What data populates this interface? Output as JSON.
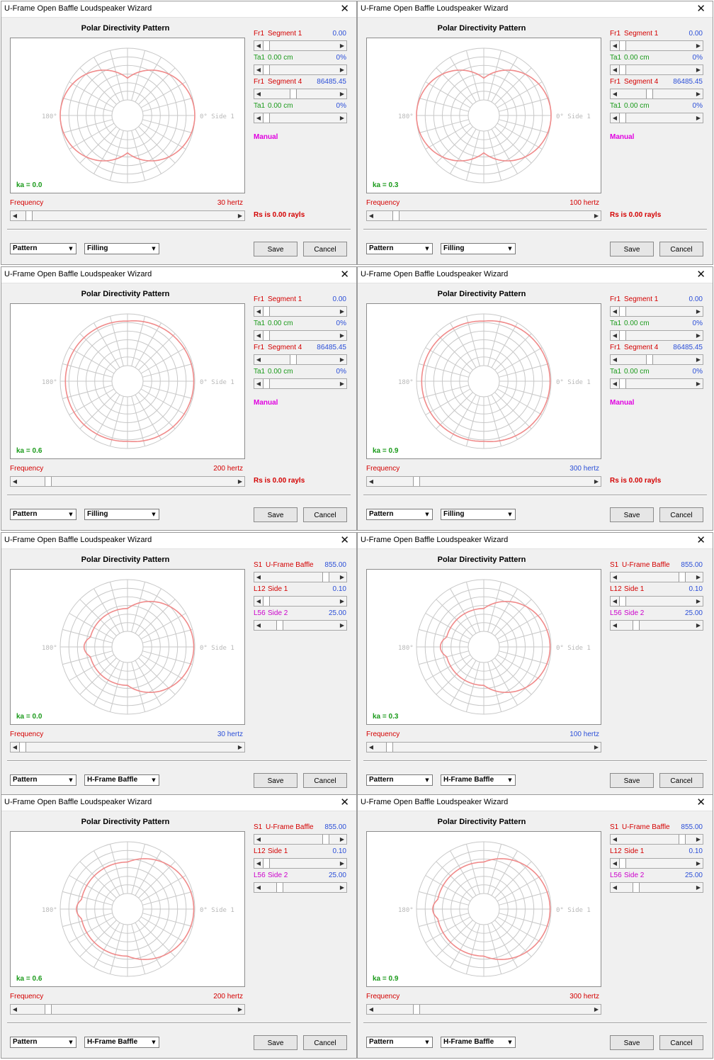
{
  "common": {
    "window_title": "U-Frame Open Baffle Loudspeaker Wizard",
    "close_glyph": "✕",
    "plot_title": "Polar Directivity Pattern",
    "angle_180": "180°",
    "angle_0": "0° Side 1",
    "frequency_label": "Frequency",
    "combo_pattern": "Pattern",
    "save_label": "Save",
    "cancel_label": "Cancel",
    "manual_label": "Manual",
    "rs_label": "Rs is 0.00 rayls",
    "slider_left_glyph": "◀",
    "slider_right_glyph": "▶",
    "combo_arrow_glyph": "▼"
  },
  "windows": [
    {
      "ka": "ka = 0.0",
      "freq": "30 hertz",
      "freq_color": "#d40000",
      "freq_thumb": 0.03,
      "combo2": "Filling",
      "mode": "filling",
      "sliders": [
        {
          "code": "Fr1",
          "name": "Segment 1",
          "value": "0.00",
          "code_color": "#d40000",
          "name_color": "#d40000",
          "value_color": "#2b4fd8",
          "thumb": 0.0
        },
        {
          "code": "Ta1",
          "name": "0.00 cm",
          "value": "0%",
          "code_color": "#1a9a1a",
          "name_color": "#1a9a1a",
          "value_color": "#2b4fd8",
          "thumb": 0.0
        },
        {
          "code": "Fr1",
          "name": "Segment 4",
          "value": "86485.45",
          "code_color": "#d40000",
          "name_color": "#d40000",
          "value_color": "#2b4fd8",
          "thumb": 0.4
        },
        {
          "code": "Ta1",
          "name": "0.00 cm",
          "value": "0%",
          "code_color": "#1a9a1a",
          "name_color": "#1a9a1a",
          "value_color": "#2b4fd8",
          "thumb": 0.0
        }
      ]
    },
    {
      "ka": "ka = 0.3",
      "freq": "100 hertz",
      "freq_color": "#d40000",
      "freq_thumb": 0.08,
      "combo2": "Filling",
      "mode": "filling",
      "sliders": [
        {
          "code": "Fr1",
          "name": "Segment 1",
          "value": "0.00",
          "code_color": "#d40000",
          "name_color": "#d40000",
          "value_color": "#2b4fd8",
          "thumb": 0.0
        },
        {
          "code": "Ta1",
          "name": "0.00 cm",
          "value": "0%",
          "code_color": "#1a9a1a",
          "name_color": "#1a9a1a",
          "value_color": "#2b4fd8",
          "thumb": 0.0
        },
        {
          "code": "Fr1",
          "name": "Segment 4",
          "value": "86485.45",
          "code_color": "#d40000",
          "name_color": "#d40000",
          "value_color": "#2b4fd8",
          "thumb": 0.4
        },
        {
          "code": "Ta1",
          "name": "0.00 cm",
          "value": "0%",
          "code_color": "#1a9a1a",
          "name_color": "#1a9a1a",
          "value_color": "#2b4fd8",
          "thumb": 0.0
        }
      ]
    },
    {
      "ka": "ka = 0.6",
      "freq": "200 hertz",
      "freq_color": "#d40000",
      "freq_thumb": 0.12,
      "combo2": "Filling",
      "mode": "filling",
      "sliders": [
        {
          "code": "Fr1",
          "name": "Segment 1",
          "value": "0.00",
          "code_color": "#d40000",
          "name_color": "#d40000",
          "value_color": "#2b4fd8",
          "thumb": 0.0
        },
        {
          "code": "Ta1",
          "name": "0.00 cm",
          "value": "0%",
          "code_color": "#1a9a1a",
          "name_color": "#1a9a1a",
          "value_color": "#2b4fd8",
          "thumb": 0.0
        },
        {
          "code": "Fr1",
          "name": "Segment 4",
          "value": "86485.45",
          "code_color": "#d40000",
          "name_color": "#d40000",
          "value_color": "#2b4fd8",
          "thumb": 0.4
        },
        {
          "code": "Ta1",
          "name": "0.00 cm",
          "value": "0%",
          "code_color": "#1a9a1a",
          "name_color": "#1a9a1a",
          "value_color": "#2b4fd8",
          "thumb": 0.0
        }
      ]
    },
    {
      "ka": "ka = 0.9",
      "freq": "300 hertz",
      "freq_color": "#2b4fd8",
      "freq_thumb": 0.18,
      "combo2": "Filling",
      "mode": "filling",
      "sliders": [
        {
          "code": "Fr1",
          "name": "Segment 1",
          "value": "0.00",
          "code_color": "#d40000",
          "name_color": "#d40000",
          "value_color": "#2b4fd8",
          "thumb": 0.0
        },
        {
          "code": "Ta1",
          "name": "0.00 cm",
          "value": "0%",
          "code_color": "#1a9a1a",
          "name_color": "#1a9a1a",
          "value_color": "#2b4fd8",
          "thumb": 0.0
        },
        {
          "code": "Fr1",
          "name": "Segment 4",
          "value": "86485.45",
          "code_color": "#d40000",
          "name_color": "#d40000",
          "value_color": "#2b4fd8",
          "thumb": 0.4
        },
        {
          "code": "Ta1",
          "name": "0.00 cm",
          "value": "0%",
          "code_color": "#1a9a1a",
          "name_color": "#1a9a1a",
          "value_color": "#2b4fd8",
          "thumb": 0.0
        }
      ]
    },
    {
      "ka": "ka = 0.0",
      "freq": "30 hertz",
      "freq_color": "#2b4fd8",
      "freq_thumb": 0.0,
      "combo2": "H-Frame Baffle",
      "mode": "hframe",
      "sliders": [
        {
          "code": "S1",
          "name": "U-Frame Baffle",
          "value": "855.00",
          "code_color": "#d40000",
          "name_color": "#d40000",
          "value_color": "#2b4fd8",
          "thumb": 0.88
        },
        {
          "code": "L12",
          "name": "Side 1",
          "value": "0.10",
          "code_color": "#d40000",
          "name_color": "#d40000",
          "value_color": "#2b4fd8",
          "thumb": 0.0
        },
        {
          "code": "L56",
          "name": "Side 2",
          "value": "25.00",
          "code_color": "#cc00cc",
          "name_color": "#cc00cc",
          "value_color": "#2b4fd8",
          "thumb": 0.2
        }
      ]
    },
    {
      "ka": "ka = 0.3",
      "freq": "100 hertz",
      "freq_color": "#2b4fd8",
      "freq_thumb": 0.05,
      "combo2": "H-Frame Baffle",
      "mode": "hframe",
      "sliders": [
        {
          "code": "S1",
          "name": "U-Frame Baffle",
          "value": "855.00",
          "code_color": "#d40000",
          "name_color": "#d40000",
          "value_color": "#2b4fd8",
          "thumb": 0.88
        },
        {
          "code": "L12",
          "name": "Side 1",
          "value": "0.10",
          "code_color": "#d40000",
          "name_color": "#d40000",
          "value_color": "#2b4fd8",
          "thumb": 0.0
        },
        {
          "code": "L56",
          "name": "Side 2",
          "value": "25.00",
          "code_color": "#cc00cc",
          "name_color": "#cc00cc",
          "value_color": "#2b4fd8",
          "thumb": 0.2
        }
      ]
    },
    {
      "ka": "ka = 0.6",
      "freq": "200 hertz",
      "freq_color": "#d40000",
      "freq_thumb": 0.12,
      "combo2": "H-Frame Baffle",
      "mode": "hframe",
      "sliders": [
        {
          "code": "S1",
          "name": "U-Frame Baffle",
          "value": "855.00",
          "code_color": "#d40000",
          "name_color": "#d40000",
          "value_color": "#2b4fd8",
          "thumb": 0.88
        },
        {
          "code": "L12",
          "name": "Side 1",
          "value": "0.10",
          "code_color": "#d40000",
          "name_color": "#d40000",
          "value_color": "#2b4fd8",
          "thumb": 0.0
        },
        {
          "code": "L56",
          "name": "Side 2",
          "value": "25.00",
          "code_color": "#cc00cc",
          "name_color": "#cc00cc",
          "value_color": "#2b4fd8",
          "thumb": 0.2
        }
      ]
    },
    {
      "ka": "ka = 0.9",
      "freq": "300 hertz",
      "freq_color": "#d40000",
      "freq_thumb": 0.18,
      "combo2": "H-Frame Baffle",
      "mode": "hframe",
      "sliders": [
        {
          "code": "S1",
          "name": "U-Frame Baffle",
          "value": "855.00",
          "code_color": "#d40000",
          "name_color": "#d40000",
          "value_color": "#2b4fd8",
          "thumb": 0.88
        },
        {
          "code": "L12",
          "name": "Side 1",
          "value": "0.10",
          "code_color": "#d40000",
          "name_color": "#d40000",
          "value_color": "#2b4fd8",
          "thumb": 0.0
        },
        {
          "code": "L56",
          "name": "Side 2",
          "value": "25.00",
          "code_color": "#cc00cc",
          "name_color": "#cc00cc",
          "value_color": "#2b4fd8",
          "thumb": 0.2
        }
      ]
    }
  ]
}
